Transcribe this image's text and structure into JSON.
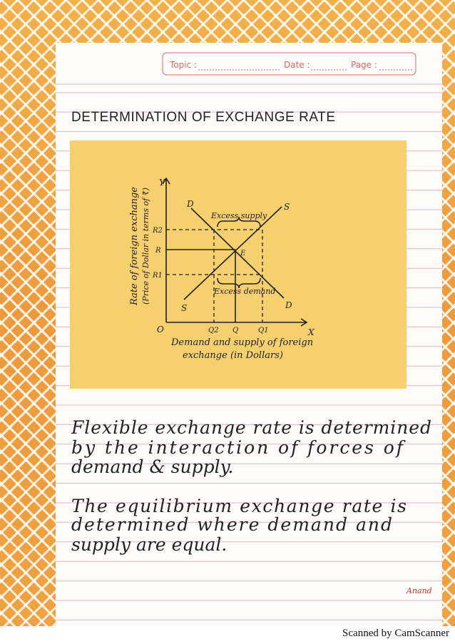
{
  "header": {
    "topic": "Topic :",
    "date": "Date :",
    "page": "Page :"
  },
  "title": "DETERMINATION OF EXCHANGE RATE",
  "diagram": {
    "y_axis_label": [
      "Rate of foreign exchange",
      "(Price of Dollar in terms of ₹)"
    ],
    "x_axis_label": [
      "Demand and supply of foreign",
      "exchange (in Dollars)"
    ],
    "y_axis": "Y",
    "x_axis": "X",
    "origin": "O",
    "y_levels": [
      "R2",
      "R",
      "R1"
    ],
    "x_levels": [
      "Q2",
      "Q",
      "Q1"
    ],
    "demand_curve": "D",
    "supply_curve": "S",
    "equilibrium": "E",
    "excess_supply": "Excess supply",
    "excess_demand": "Excess demand"
  },
  "paragraphs": [
    [
      "Flexible exchange rate is determined",
      "by the interaction of forces of",
      "demand & supply."
    ],
    [
      "The equilibrium exchange rate is",
      "determined where demand and",
      "supply are equal."
    ]
  ],
  "signature": "Anand",
  "footer": "Scanned by CamScanner"
}
